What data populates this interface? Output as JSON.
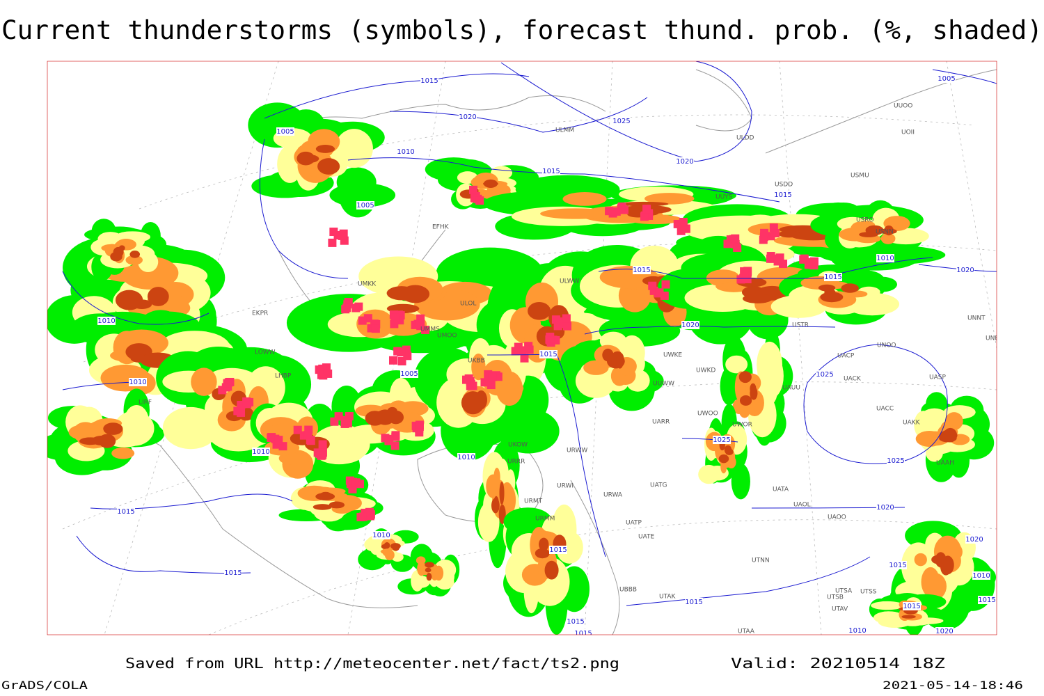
{
  "title": "Current thunderstorms (symbols), forecast thund. prob. (%, shaded)",
  "footer": {
    "source": "Saved from URL http://meteocenter.net/fact/ts2.png",
    "valid": "Valid: 20210514 18Z",
    "software": "GrADS/COLA",
    "timestamp": "2021-05-14-18:46"
  },
  "isobar_labels": [
    "1015",
    "1020",
    "1025",
    "1005",
    "1010",
    "1015",
    "1020",
    "1005",
    "1015",
    "1005",
    "1015",
    "1010",
    "1015",
    "1020",
    "1010",
    "1020",
    "1015",
    "1005",
    "1010",
    "1025",
    "1010",
    "1010",
    "1025",
    "1025",
    "1015",
    "1020",
    "1010",
    "1015",
    "1015",
    "1015",
    "1015",
    "1010",
    "1020",
    "1020",
    "1015",
    "1010",
    "1015",
    "1015",
    "1015"
  ],
  "stations": [
    "ULMM",
    "ULDD",
    "USMU",
    "USDD",
    "UUYS",
    "USRO",
    "USNN",
    "UUOO",
    "UOII",
    "EFHK",
    "ULWW",
    "UMKK",
    "ULOL",
    "EKPR",
    "UMMS",
    "UMOO",
    "LOWW",
    "LHBP",
    "LIRF",
    "UKBB",
    "USTR",
    "UNNT",
    "UNBB",
    "UNOO",
    "UACP",
    "UACK",
    "UASP",
    "UACC",
    "UAKK",
    "UAUU",
    "UWOO",
    "UWOR",
    "UARR",
    "URWW",
    "UKOW",
    "URRR",
    "URWI",
    "URMT",
    "URMM",
    "UATG",
    "URWA",
    "UATA",
    "UAOL",
    "UAOO",
    "UATP",
    "UATE",
    "UTNN",
    "UBBB",
    "UTAK",
    "UTSA",
    "UTSB",
    "UTSS",
    "UTAV",
    "UTAA",
    "UWKE",
    "UWKD",
    "UUWW",
    "UAAH"
  ]
}
